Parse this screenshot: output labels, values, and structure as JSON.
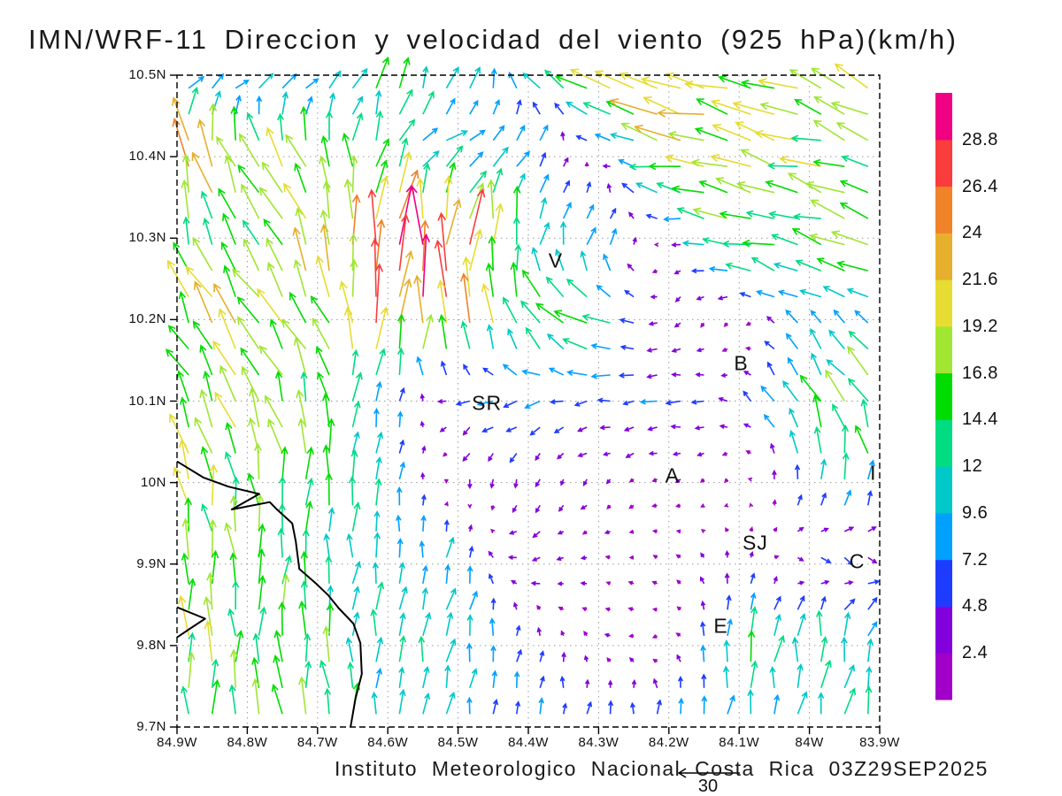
{
  "title": "IMN/WRF-11 Direccion y velocidad del viento (925 hPa)(km/h)",
  "footer": {
    "credit": "Instituto Meteorologico Nacional Costa Rica 03Z29SEP2025",
    "ref_arrow_label": "30",
    "ref_arrow_kmh": 30
  },
  "chart_data": {
    "type": "vector_field",
    "model": "IMN/WRF-11",
    "variable": "Direccion y velocidad del viento",
    "level": "925 hPa",
    "units": "km/h",
    "valid_time": "03Z29SEP2025",
    "lat_tick_labels": [
      "10.5N",
      "10.4N",
      "10.3N",
      "10.2N",
      "10.1N",
      "10N",
      "9.9N",
      "9.8N",
      "9.7N"
    ],
    "lon_tick_labels": [
      "84.9W",
      "84.8W",
      "84.7W",
      "84.6W",
      "84.5W",
      "84.4W",
      "84.3W",
      "84.2W",
      "84.1W",
      "84W",
      "83.9W"
    ],
    "lat_range": [
      9.7,
      10.5
    ],
    "lon_range_w": [
      84.9,
      83.9
    ],
    "grid_step_deg": 0.1,
    "colorbar": {
      "tick_labels": [
        "2.4",
        "4.8",
        "7.2",
        "9.6",
        "12",
        "14.4",
        "16.8",
        "19.2",
        "21.6",
        "24",
        "26.4",
        "28.8"
      ],
      "levels_kmh": [
        2.4,
        4.8,
        7.2,
        9.6,
        12,
        14.4,
        16.8,
        19.2,
        21.6,
        24,
        26.4,
        28.8
      ],
      "colors_low_to_high": [
        "#A000C8",
        "#8200DC",
        "#1E3CFF",
        "#00A0FF",
        "#00C8C8",
        "#00DC82",
        "#00DC00",
        "#A0E632",
        "#E6DC32",
        "#E6AF2D",
        "#F08228",
        "#FA3C3C",
        "#F00082"
      ]
    },
    "wind_grid": {
      "lons_w": [
        84.9,
        84.8,
        84.7,
        84.6,
        84.5,
        84.4,
        84.3,
        84.2,
        84.1,
        84.0,
        83.9
      ],
      "lats": [
        10.5,
        10.4,
        10.3,
        10.2,
        10.1,
        10.0,
        9.9,
        9.8,
        9.7
      ],
      "u_kmh": [
        [
          8,
          10,
          9,
          4,
          2,
          -6,
          -20,
          -22,
          -20,
          -17,
          -15
        ],
        [
          -4,
          -8,
          -5,
          5,
          10,
          6,
          -2,
          -20,
          -19,
          -17,
          -14
        ],
        [
          -2,
          -6,
          -8,
          2,
          1,
          2,
          5,
          -2,
          -17,
          -15,
          -16
        ],
        [
          -9,
          -10,
          -9,
          0,
          2,
          -8,
          -14,
          -2,
          -1,
          -6,
          -7
        ],
        [
          -8,
          -8,
          -3,
          4,
          -6,
          -7,
          -5,
          -7,
          -3,
          -8,
          -10
        ],
        [
          -4,
          -2,
          0,
          1,
          0,
          -1,
          -2,
          -2,
          -1,
          1,
          2
        ],
        [
          -2,
          0,
          1,
          1,
          2,
          -5,
          -2,
          -2,
          0,
          4,
          5
        ],
        [
          -2,
          0,
          0,
          1,
          2,
          1,
          -2,
          -2,
          1,
          1,
          4
        ],
        [
          0,
          0,
          -3,
          1,
          1,
          1,
          1,
          1,
          2,
          2,
          2
        ]
      ],
      "v_kmh": [
        [
          4,
          2,
          4,
          15,
          12,
          8,
          8,
          6,
          5,
          6,
          7
        ],
        [
          24,
          19,
          17,
          10,
          3,
          8,
          -1,
          4,
          4,
          5,
          6
        ],
        [
          15,
          12,
          18,
          26,
          27,
          12,
          10,
          -2,
          4,
          4,
          5
        ],
        [
          17,
          16,
          16,
          27,
          23,
          14,
          6,
          -2,
          -2,
          6,
          3
        ],
        [
          16,
          15,
          15,
          9,
          -3,
          -2,
          -1,
          0,
          1,
          14,
          15
        ],
        [
          18,
          16,
          15,
          10,
          -4,
          -4,
          -2,
          -1,
          -2,
          10,
          11
        ],
        [
          16,
          16,
          14,
          10,
          9,
          -1,
          0,
          1,
          4,
          -4,
          -3
        ],
        [
          18,
          16,
          15,
          11,
          10,
          5,
          1,
          -1,
          13,
          14,
          10
        ],
        [
          16,
          16,
          15,
          11,
          9,
          7,
          6,
          9,
          10,
          11,
          13
        ]
      ]
    },
    "city_labels": [
      {
        "text": "V",
        "lon_w": 84.361,
        "lat": 10.272
      },
      {
        "text": "B",
        "lon_w": 84.097,
        "lat": 10.146
      },
      {
        "text": "SR",
        "lon_w": 84.459,
        "lat": 10.097
      },
      {
        "text": "A",
        "lon_w": 84.195,
        "lat": 10.008
      },
      {
        "text": "SJ",
        "lon_w": 84.077,
        "lat": 9.926
      },
      {
        "text": "C",
        "lon_w": 83.932,
        "lat": 9.903
      },
      {
        "text": "E",
        "lon_w": 84.126,
        "lat": 9.824
      },
      {
        "text": "I",
        "lon_w": 83.909,
        "lat": 10.012
      }
    ],
    "coastline": [
      [
        [
          84.9,
          10.026
        ],
        [
          84.862,
          10.006
        ],
        [
          84.827,
          9.995
        ],
        [
          84.783,
          9.986
        ],
        [
          84.822,
          9.967
        ],
        [
          84.768,
          9.976
        ],
        [
          84.759,
          9.968
        ],
        [
          84.736,
          9.95
        ],
        [
          84.731,
          9.928
        ],
        [
          84.726,
          9.894
        ],
        [
          84.702,
          9.876
        ],
        [
          84.685,
          9.862
        ],
        [
          84.67,
          9.846
        ],
        [
          84.649,
          9.827
        ],
        [
          84.639,
          9.803
        ],
        [
          84.637,
          9.765
        ],
        [
          84.646,
          9.735
        ],
        [
          84.653,
          9.7
        ]
      ],
      [
        [
          84.9,
          9.847
        ],
        [
          84.86,
          9.833
        ],
        [
          84.881,
          9.821
        ],
        [
          84.9,
          9.81
        ]
      ]
    ]
  }
}
